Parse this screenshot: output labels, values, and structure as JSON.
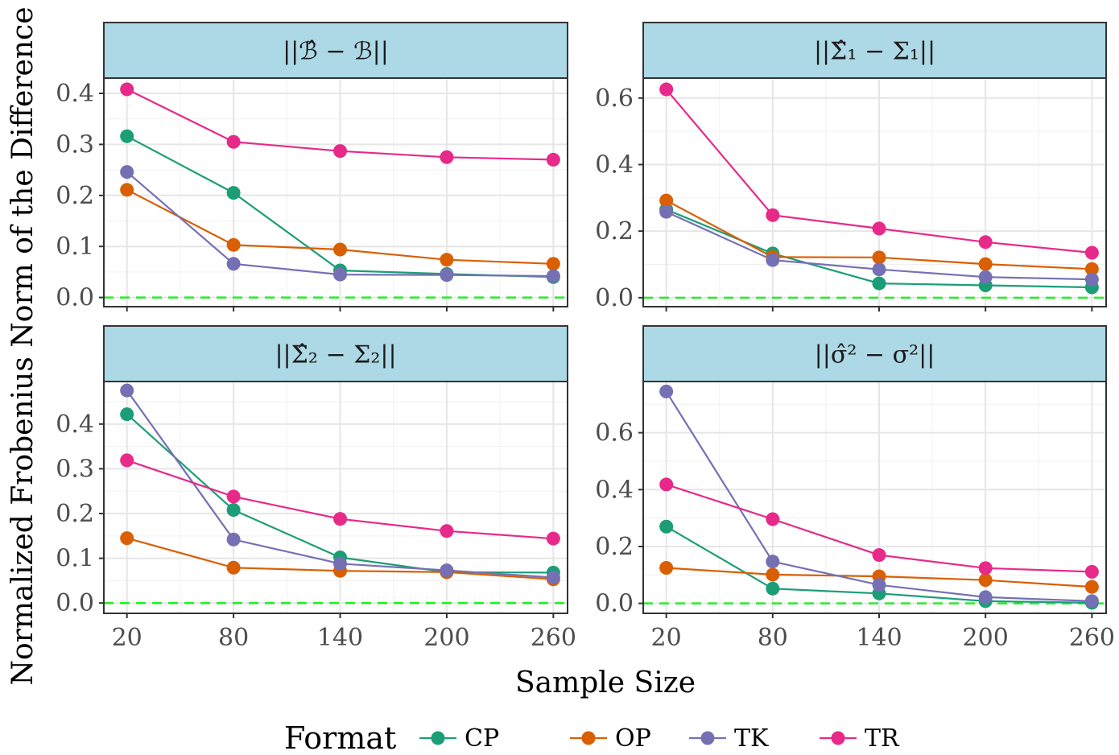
{
  "chart_data": {
    "type": "line",
    "xlabel": "Sample Size",
    "ylabel": "Normalized Frobenius Norm of the Difference",
    "x": [
      20,
      80,
      140,
      200,
      260
    ],
    "x_ticks": [
      "20",
      "80",
      "140",
      "200",
      "260"
    ],
    "reference_line": {
      "y": 0,
      "style": "dashed",
      "color": "#22ee22"
    },
    "legend": {
      "title": "Format",
      "position": "bottom",
      "entries": [
        {
          "name": "CP",
          "color": "#1b9e77"
        },
        {
          "name": "OP",
          "color": "#d95f02"
        },
        {
          "name": "TK",
          "color": "#7570b3"
        },
        {
          "name": "TR",
          "color": "#e7298a"
        }
      ]
    },
    "panels": [
      {
        "title": "||B̂ − B||",
        "title_main": "||",
        "title_hat": "ℬ",
        "title_rest": " − ℬ||",
        "ylim": [
          -0.018,
          0.43
        ],
        "y_ticks": [
          0.0,
          0.1,
          0.2,
          0.3,
          0.4
        ],
        "y_tick_labels": [
          "0.0",
          "0.1",
          "0.2",
          "0.3",
          "0.4"
        ],
        "series": [
          {
            "name": "CP",
            "values": [
              0.316,
              0.205,
              0.053,
              0.046,
              0.04
            ]
          },
          {
            "name": "OP",
            "values": [
              0.211,
              0.103,
              0.094,
              0.074,
              0.066
            ]
          },
          {
            "name": "TK",
            "values": [
              0.246,
              0.066,
              0.045,
              0.044,
              0.042
            ]
          },
          {
            "name": "TR",
            "values": [
              0.408,
              0.305,
              0.287,
              0.275,
              0.27
            ]
          }
        ]
      },
      {
        "title": "||Σ̂₁ − Σ₁||",
        "title_main": "||",
        "title_hat": "Σ",
        "title_rest": "₁ − Σ₁||",
        "ylim": [
          -0.027,
          0.66
        ],
        "y_ticks": [
          0.0,
          0.2,
          0.4,
          0.6
        ],
        "y_tick_labels": [
          "0.0",
          "0.2",
          "0.4",
          "0.6"
        ],
        "series": [
          {
            "name": "CP",
            "values": [
              0.265,
              0.133,
              0.043,
              0.037,
              0.031
            ]
          },
          {
            "name": "OP",
            "values": [
              0.292,
              0.122,
              0.121,
              0.101,
              0.086
            ]
          },
          {
            "name": "TK",
            "values": [
              0.258,
              0.113,
              0.085,
              0.062,
              0.055
            ]
          },
          {
            "name": "TR",
            "values": [
              0.626,
              0.248,
              0.208,
              0.167,
              0.135
            ]
          }
        ]
      },
      {
        "title": "||Σ̂₂ − Σ₂||",
        "title_main": "||",
        "title_hat": "Σ",
        "title_rest": "₂ − Σ₂||",
        "ylim": [
          -0.023,
          0.495
        ],
        "y_ticks": [
          0.0,
          0.1,
          0.2,
          0.3,
          0.4
        ],
        "y_tick_labels": [
          "0.0",
          "0.1",
          "0.2",
          "0.3",
          "0.4"
        ],
        "series": [
          {
            "name": "CP",
            "values": [
              0.422,
              0.208,
              0.102,
              0.069,
              0.068
            ]
          },
          {
            "name": "OP",
            "values": [
              0.145,
              0.079,
              0.072,
              0.069,
              0.053
            ]
          },
          {
            "name": "TK",
            "values": [
              0.475,
              0.142,
              0.088,
              0.073,
              0.057
            ]
          },
          {
            "name": "TR",
            "values": [
              0.319,
              0.238,
              0.188,
              0.161,
              0.144
            ]
          }
        ]
      },
      {
        "title": "||σ̂² − σ²||",
        "title_main": "||",
        "title_hat": "σ",
        "title_rest": "² − σ²||",
        "ylim": [
          -0.035,
          0.78
        ],
        "y_ticks": [
          0.0,
          0.2,
          0.4,
          0.6
        ],
        "y_tick_labels": [
          "0.0",
          "0.2",
          "0.4",
          "0.6"
        ],
        "series": [
          {
            "name": "CP",
            "values": [
              0.27,
              0.052,
              0.035,
              0.008,
              0.002
            ]
          },
          {
            "name": "OP",
            "values": [
              0.125,
              0.101,
              0.095,
              0.082,
              0.058
            ]
          },
          {
            "name": "TK",
            "values": [
              0.745,
              0.147,
              0.065,
              0.022,
              0.008
            ]
          },
          {
            "name": "TR",
            "values": [
              0.418,
              0.296,
              0.17,
              0.124,
              0.111
            ]
          }
        ]
      }
    ]
  }
}
